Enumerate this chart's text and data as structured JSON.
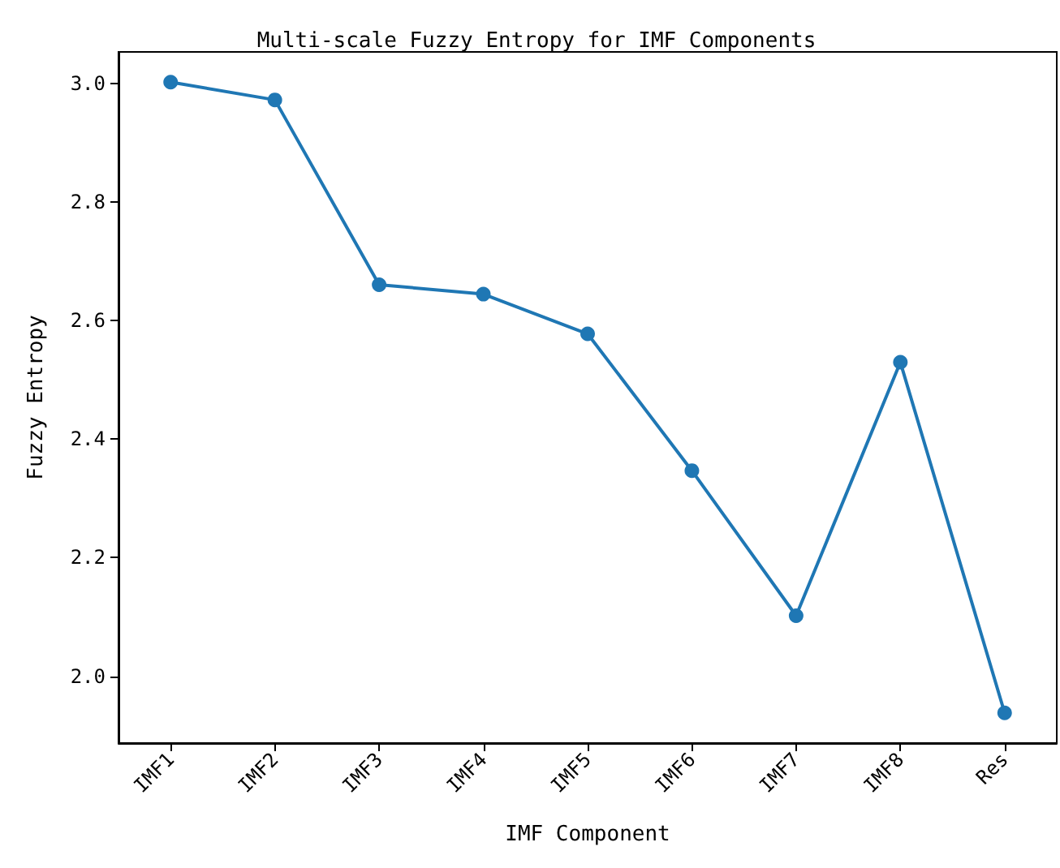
{
  "chart_data": {
    "type": "line",
    "title": "Multi-scale Fuzzy Entropy for IMF Components",
    "xlabel": "IMF Component",
    "ylabel": "Fuzzy Entropy",
    "categories": [
      "IMF1",
      "IMF2",
      "IMF3",
      "IMF4",
      "IMF5",
      "IMF6",
      "IMF7",
      "IMF8",
      "Res"
    ],
    "series": [
      {
        "color": "#1f77b4",
        "values": [
          3.003,
          2.973,
          2.661,
          2.645,
          2.578,
          2.347,
          2.102,
          2.53,
          1.938
        ]
      }
    ],
    "ylim": [
      1.887,
      3.054
    ],
    "yticks": [
      {
        "value": 2.0,
        "label": "2.0"
      },
      {
        "value": 2.2,
        "label": "2.2"
      },
      {
        "value": 2.4,
        "label": "2.4"
      },
      {
        "value": 2.6,
        "label": "2.6"
      },
      {
        "value": 2.8,
        "label": "2.8"
      },
      {
        "value": 3.0,
        "label": "3.0"
      }
    ],
    "grid": false,
    "marker": "circle",
    "line_style": "solid"
  }
}
